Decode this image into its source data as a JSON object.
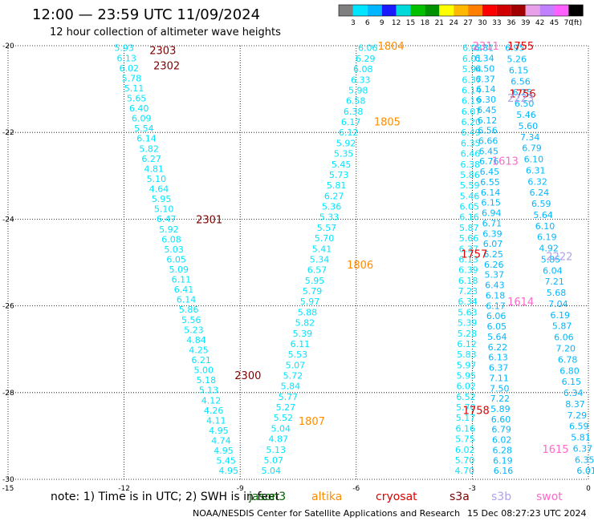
{
  "title": "12:00 — 23:59 UTC 11/09/2024",
  "subtitle": "12 hour collection of altimeter wave heights",
  "colorbar": {
    "ticks": [
      "3",
      "6",
      "9",
      "12",
      "15",
      "18",
      "21",
      "24",
      "27",
      "30",
      "33",
      "36",
      "39",
      "42",
      "45",
      "70",
      "(ft)"
    ],
    "colors": [
      "#7f7f7f",
      "#00e5ff",
      "#00b7ff",
      "#1a1aff",
      "#00d9d9",
      "#00c000",
      "#009000",
      "#ffff00",
      "#ffb800",
      "#ff7f00",
      "#ff0000",
      "#d00000",
      "#a00000",
      "#e8a0e8",
      "#c080ff",
      "#ff60ff",
      "#000000"
    ]
  },
  "chart_data": {
    "type": "scatter",
    "xlim": [
      -15,
      0
    ],
    "ylim": [
      -30,
      -20
    ],
    "x_ticks": [
      "-15",
      "-12",
      "-9",
      "-6",
      "-3",
      "0"
    ],
    "y_ticks": [
      "-20",
      "-22",
      "-24",
      "-26",
      "-28",
      "-30"
    ],
    "tracks": [
      {
        "color": "#00e5ff",
        "lon_start": -12.0,
        "lat_start": -20.05,
        "lon_end": -9.3,
        "lat_end": -29.8,
        "values": [
          "5.93",
          "6.13",
          "6.02",
          "5.78",
          "5.11",
          "5.65",
          "6.40",
          "6.09",
          "5.54",
          "6.14",
          "5.82",
          "6.27",
          "4.81",
          "5.10",
          "4.64",
          "5.95",
          "5.10",
          "6.47",
          "5.92",
          "6.08",
          "5.03",
          "6.05",
          "5.09",
          "6.11",
          "6.41",
          "6.14",
          "5.86",
          "5.56",
          "5.23",
          "4.84",
          "4.25",
          "6.21",
          "5.00",
          "5.18",
          "5.13",
          "4.12",
          "4.26",
          "4.11",
          "4.95",
          "4.74",
          "4.95",
          "5.45",
          "4.95"
        ]
      },
      {
        "color": "#00e5ff",
        "lon_start": -5.7,
        "lat_start": -20.05,
        "lon_end": -8.2,
        "lat_end": -29.8,
        "values": [
          "6.06",
          "6.29",
          "6.08",
          "6.33",
          "5.98",
          "6.58",
          "6.38",
          "6.17",
          "6.12",
          "5.92",
          "5.35",
          "5.45",
          "5.73",
          "5.81",
          "6.27",
          "5.36",
          "5.33",
          "5.57",
          "5.70",
          "5.41",
          "5.34",
          "6.57",
          "5.95",
          "5.79",
          "5.97",
          "5.88",
          "5.82",
          "5.39",
          "6.11",
          "5.53",
          "5.07",
          "5.72",
          "5.84",
          "5.77",
          "5.27",
          "5.52",
          "5.04",
          "4.87",
          "5.13",
          "5.07",
          "5.04"
        ]
      },
      {
        "color": "#00e5ff",
        "lon_start": -3.0,
        "lat_start": -20.05,
        "lon_end": -3.2,
        "lat_end": -29.8,
        "values": [
          "6.03",
          "6.01",
          "5.94",
          "6.37",
          "6.14",
          "6.19",
          "6.07",
          "6.20",
          "6.49",
          "6.35",
          "6.46",
          "6.38",
          "5.86",
          "5.59",
          "5.46",
          "6.05",
          "6.16",
          "5.87",
          "5.66",
          "6.37",
          "6.13",
          "6.39",
          "6.18",
          "7.23",
          "6.34",
          "5.63",
          "5.39",
          "5.28",
          "6.12",
          "5.83",
          "5.97",
          "5.95",
          "6.02",
          "6.52",
          "5.70",
          "5.17",
          "6.16",
          "5.75",
          "6.02",
          "5.70",
          "4.70"
        ]
      },
      {
        "color": "#00b7ff",
        "lon_start": -2.7,
        "lat_start": -20.05,
        "lon_end": -2.2,
        "lat_end": -29.8,
        "values": [
          "6.81",
          "6.34",
          "6.50",
          "6.37",
          "6.14",
          "6.30",
          "6.45",
          "6.12",
          "6.56",
          "6.66",
          "6.45",
          "6.76",
          "6.45",
          "6.55",
          "6.14",
          "6.15",
          "6.94",
          "6.71",
          "6.39",
          "6.07",
          "6.25",
          "6.26",
          "5.37",
          "6.43",
          "6.18",
          "6.17",
          "6.06",
          "6.05",
          "5.64",
          "6.22",
          "6.13",
          "6.37",
          "7.11",
          "7.50",
          "7.22",
          "5.89",
          "6.60",
          "6.79",
          "6.02",
          "6.28",
          "6.19",
          "6.16"
        ]
      },
      {
        "color": "#00b7ff",
        "lon_start": -1.9,
        "lat_start": -20.05,
        "lon_end": -0.05,
        "lat_end": -29.8,
        "values": [
          "6.95",
          "5.26",
          "6.15",
          "6.56",
          "6.25",
          "6.50",
          "5.46",
          "5.60",
          "7.34",
          "6.79",
          "6.10",
          "6.31",
          "6.32",
          "6.24",
          "6.59",
          "5.64",
          "6.10",
          "6.19",
          "4.92",
          "5.85",
          "6.04",
          "7.21",
          "5.68",
          "7.04",
          "6.19",
          "5.87",
          "6.06",
          "7.20",
          "6.78",
          "6.80",
          "6.15",
          "6.34",
          "8.37",
          "7.29",
          "6.59",
          "5.81",
          "6.37",
          "6.35",
          "6.01"
        ]
      }
    ],
    "pass_labels": [
      {
        "text": "2303",
        "color": "#800000",
        "lon": -11.0,
        "lat": -20.1
      },
      {
        "text": "2302",
        "color": "#800000",
        "lon": -10.9,
        "lat": -20.45
      },
      {
        "text": "2301",
        "color": "#800000",
        "lon": -9.8,
        "lat": -24.0
      },
      {
        "text": "2300",
        "color": "#800000",
        "lon": -8.8,
        "lat": -27.6
      },
      {
        "text": "1804",
        "color": "#ff8c00",
        "lon": -5.1,
        "lat": -20.0
      },
      {
        "text": "1805",
        "color": "#ff8c00",
        "lon": -5.2,
        "lat": -21.75
      },
      {
        "text": "1806",
        "color": "#ff8c00",
        "lon": -5.9,
        "lat": -25.05
      },
      {
        "text": "1807",
        "color": "#ff8c00",
        "lon": -7.15,
        "lat": -28.65
      },
      {
        "text": "1755",
        "color": "#e00000",
        "lon": -1.75,
        "lat": -20.0
      },
      {
        "text": "1756",
        "color": "#e00000",
        "lon": -1.7,
        "lat": -21.1
      },
      {
        "text": "1757",
        "color": "#e00000",
        "lon": -2.95,
        "lat": -24.8
      },
      {
        "text": "1758",
        "color": "#e00000",
        "lon": -2.9,
        "lat": -28.4
      },
      {
        "text": "2223",
        "color": "#b0a0e8",
        "lon": -1.75,
        "lat": -21.2
      },
      {
        "text": "2222",
        "color": "#b0a0e8",
        "lon": -0.75,
        "lat": -24.85
      },
      {
        "text": "1613",
        "color": "#ff69c8",
        "lon": -2.15,
        "lat": -22.65
      },
      {
        "text": "1614",
        "color": "#ff69c8",
        "lon": -1.75,
        "lat": -25.9
      },
      {
        "text": "1615",
        "color": "#ff69c8",
        "lon": -0.85,
        "lat": -29.3
      },
      {
        "text": "2311",
        "color": "#ff69c8",
        "lon": -2.65,
        "lat": -20.0
      }
    ]
  },
  "note": "note:  1) Time is in UTC;  2) SWH is in feet",
  "satellites": [
    {
      "name": "jason3",
      "color": "#006400"
    },
    {
      "name": "altika",
      "color": "#ff8c00"
    },
    {
      "name": "cryosat",
      "color": "#e00000"
    },
    {
      "name": "s3a",
      "color": "#800000"
    },
    {
      "name": "s3b",
      "color": "#b0a0e8"
    },
    {
      "name": "swot",
      "color": "#ff69c8"
    }
  ],
  "credit": "NOAA/NESDIS Center for Satellite Applications and Research",
  "timestamp": "15 Dec 08:27:23 UTC 2024"
}
